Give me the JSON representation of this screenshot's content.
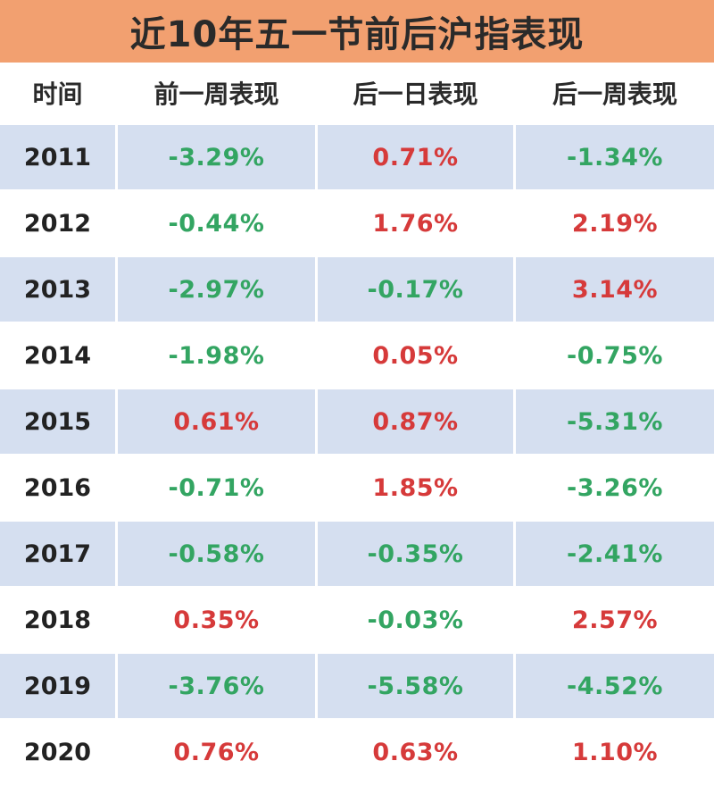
{
  "title": "近10年五一节前后沪指表现",
  "headers": [
    "时间",
    "前一周表现",
    "后一日表现",
    "后一周表现"
  ],
  "colors": {
    "title_bg": "#f2a070",
    "row_shaded": "#d5dff0",
    "negative": "#33a562",
    "positive": "#d63a3a"
  },
  "rows": [
    {
      "year": "2011",
      "before_week": "-3.29%",
      "next_day": "0.71%",
      "after_week": "-1.34%"
    },
    {
      "year": "2012",
      "before_week": "-0.44%",
      "next_day": "1.76%",
      "after_week": "2.19%"
    },
    {
      "year": "2013",
      "before_week": "-2.97%",
      "next_day": "-0.17%",
      "after_week": "3.14%"
    },
    {
      "year": "2014",
      "before_week": "-1.98%",
      "next_day": "0.05%",
      "after_week": "-0.75%"
    },
    {
      "year": "2015",
      "before_week": "0.61%",
      "next_day": "0.87%",
      "after_week": "-5.31%"
    },
    {
      "year": "2016",
      "before_week": "-0.71%",
      "next_day": "1.85%",
      "after_week": "-3.26%"
    },
    {
      "year": "2017",
      "before_week": "-0.58%",
      "next_day": "-0.35%",
      "after_week": "-2.41%"
    },
    {
      "year": "2018",
      "before_week": "0.35%",
      "next_day": "-0.03%",
      "after_week": "2.57%"
    },
    {
      "year": "2019",
      "before_week": "-3.76%",
      "next_day": "-5.58%",
      "after_week": "-4.52%"
    },
    {
      "year": "2020",
      "before_week": "0.76%",
      "next_day": "0.63%",
      "after_week": "1.10%"
    }
  ]
}
